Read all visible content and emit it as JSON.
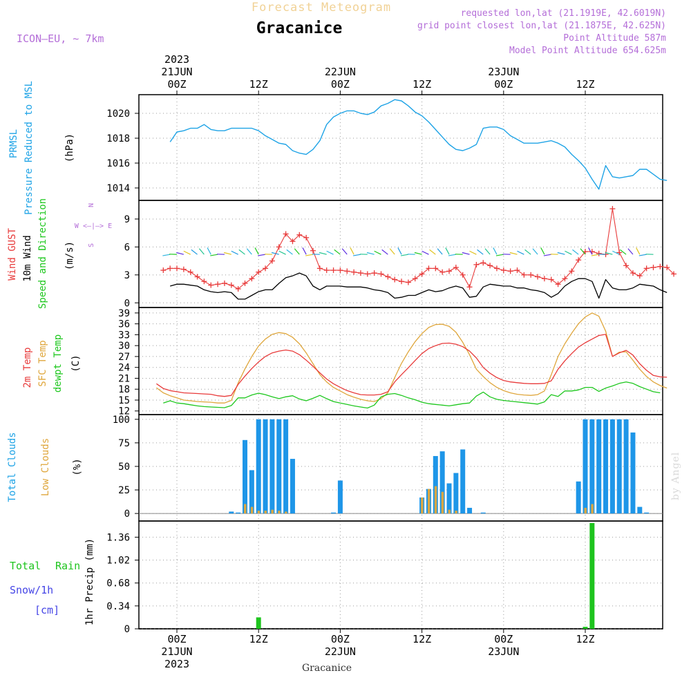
{
  "header": {
    "supertitle": "Forecast Meteogram",
    "location": "Gracanice",
    "model": "ICON—EU, ~ 7km",
    "requested": "requested lon,lat (21.1919E, 42.6019N)",
    "gridpoint": "grid point closest lon,lat (21.1875E, 42.625N)",
    "point_alt": "Point Altitude 587m",
    "model_alt": "Model Point Altitude 654.625m",
    "credit": "by Angel",
    "footer": "Gracanice"
  },
  "time_axis": {
    "top": [
      {
        "slot": 0,
        "lines": [
          "2023",
          "21JUN",
          "00Z"
        ]
      },
      {
        "slot": 12,
        "lines": [
          "12Z"
        ]
      },
      {
        "slot": 24,
        "lines": [
          "22JUN",
          "00Z"
        ]
      },
      {
        "slot": 36,
        "lines": [
          "12Z"
        ]
      },
      {
        "slot": 48,
        "lines": [
          "23JUN",
          "00Z"
        ]
      },
      {
        "slot": 60,
        "lines": [
          "12Z"
        ]
      }
    ],
    "bottom": [
      {
        "slot": 0,
        "lines": [
          "00Z",
          "21JUN",
          "2023"
        ]
      },
      {
        "slot": 12,
        "lines": [
          "12Z"
        ]
      },
      {
        "slot": 24,
        "lines": [
          "00Z",
          "22JUN"
        ]
      },
      {
        "slot": 36,
        "lines": [
          "12Z"
        ]
      },
      {
        "slot": 48,
        "lines": [
          "00Z",
          "23JUN"
        ]
      },
      {
        "slot": 60,
        "lines": [
          "12Z"
        ]
      }
    ]
  },
  "panel_labels": {
    "pressure": {
      "l1": "PRMSL",
      "l2": "Pressure Reduced to MSL",
      "unit": "(hPa)"
    },
    "wind": {
      "l1": "Wind GUST",
      "l2": "10m Wind",
      "l3": "Speed and Direction",
      "unit": "(m/s)",
      "compass": [
        "N",
        "W <—|—> E",
        "S"
      ]
    },
    "temp": {
      "l1": "2m Temp",
      "l2": "SFC Temp",
      "l3": "dewpt Temp",
      "unit": "(C)"
    },
    "clouds": {
      "l1": "Total Clouds",
      "l2": "Low Clouds",
      "unit": "(%)"
    },
    "precip": {
      "l1": "Total",
      "l1b": "Rain",
      "l2": "Snow/1h",
      "l3": "[cm]",
      "unit": "1hr Precip (mm)"
    }
  },
  "colors": {
    "pressure": "#1ea3e6",
    "gust": "#e83a3a",
    "wind": "#000000",
    "temp2m": "#e83a3a",
    "sfc": "#dfa63b",
    "dew": "#1dc71d",
    "total_clouds": "#1e96e8",
    "low_clouds": "#d8a744",
    "rain": "#1ec41e",
    "snow": "#4545e6",
    "model": "#b46ed8",
    "title_top": "#f1d296"
  },
  "chart_data": [
    {
      "type": "line",
      "name": "pressure",
      "ylim": [
        1013,
        1021.5
      ],
      "yticks": [
        1014,
        1016,
        1018,
        1020
      ],
      "x_start": -1,
      "x_step": 1,
      "series": [
        {
          "name": "PRMSL",
          "values": [
            1017.7,
            1018.5,
            1018.6,
            1018.8,
            1018.8,
            1019.1,
            1018.7,
            1018.6,
            1018.6,
            1018.8,
            1018.8,
            1018.8,
            1018.8,
            1018.6,
            1018.2,
            1017.9,
            1017.6,
            1017.5,
            1017.0,
            1016.8,
            1016.7,
            1017.1,
            1017.8,
            1019.1,
            1019.7,
            1020.0,
            1020.2,
            1020.2,
            1020.0,
            1019.9,
            1020.1,
            1020.6,
            1020.8,
            1021.1,
            1021.0,
            1020.6,
            1020.1,
            1019.8,
            1019.3,
            1018.7,
            1018.1,
            1017.5,
            1017.1,
            1017.0,
            1017.2,
            1017.5,
            1018.8,
            1018.9,
            1018.9,
            1018.7,
            1018.2,
            1017.9,
            1017.6,
            1017.6,
            1017.6,
            1017.7,
            1017.8,
            1017.6,
            1017.3,
            1016.7,
            1016.2,
            1015.6,
            1014.7,
            1013.9,
            1015.8,
            1014.9,
            1014.8,
            1014.9,
            1015.0,
            1015.5,
            1015.5,
            1015.1,
            1014.7,
            1014.6
          ]
        }
      ]
    },
    {
      "type": "line",
      "name": "wind",
      "ylim": [
        -0.5,
        11
      ],
      "yticks": [
        0,
        3,
        6,
        9
      ],
      "x_start": -1,
      "x_step": 1,
      "series": [
        {
          "name": "Wind GUST",
          "values": [
            3.5,
            3.7,
            3.7,
            3.6,
            3.3,
            2.8,
            2.3,
            1.9,
            2.0,
            2.1,
            1.9,
            1.5,
            2.1,
            2.6,
            3.3,
            3.7,
            4.5,
            6.0,
            7.4,
            6.6,
            7.3,
            7.0,
            5.6,
            3.7,
            3.5,
            3.5,
            3.5,
            3.4,
            3.3,
            3.2,
            3.1,
            3.2,
            3.1,
            2.8,
            2.5,
            2.3,
            2.2,
            2.6,
            3.1,
            3.7,
            3.7,
            3.3,
            3.4,
            3.8,
            3.0,
            1.7,
            4.1,
            4.3,
            4.0,
            3.7,
            3.5,
            3.4,
            3.5,
            3.0,
            3.0,
            2.8,
            2.6,
            2.5,
            2.0,
            2.6,
            3.4,
            4.6,
            5.5,
            5.5,
            5.3,
            5.2,
            10.1,
            5.4,
            4.0,
            3.2,
            2.9,
            3.7,
            3.8,
            3.9,
            3.8,
            3.1
          ],
          "x_start": -2
        },
        {
          "name": "10m Wind",
          "values": [
            1.8,
            2.0,
            2.0,
            1.9,
            1.8,
            1.4,
            1.2,
            1.1,
            1.2,
            1.1,
            0.4,
            0.4,
            0.8,
            1.2,
            1.4,
            1.4,
            2.1,
            2.7,
            2.9,
            3.2,
            2.9,
            1.8,
            1.4,
            1.8,
            1.8,
            1.8,
            1.7,
            1.7,
            1.7,
            1.6,
            1.4,
            1.3,
            1.1,
            0.5,
            0.6,
            0.8,
            0.8,
            1.1,
            1.4,
            1.2,
            1.3,
            1.6,
            1.8,
            1.6,
            0.6,
            0.7,
            1.7,
            2.0,
            1.9,
            1.8,
            1.8,
            1.6,
            1.6,
            1.4,
            1.3,
            1.1,
            0.6,
            1.0,
            1.8,
            2.3,
            2.6,
            2.6,
            2.3,
            0.5,
            2.5,
            1.6,
            1.4,
            1.4,
            1.6,
            2.0,
            1.9,
            1.8,
            1.4,
            1.1
          ]
        }
      ],
      "direction_arrows_x": [
        -1,
        0,
        1,
        2,
        3,
        4,
        5,
        6,
        7,
        8,
        9,
        10,
        11,
        12,
        13,
        14,
        15,
        16,
        17,
        18,
        19,
        20,
        21,
        22,
        23,
        24,
        25,
        26,
        27,
        28,
        29,
        30,
        31,
        32,
        33,
        34,
        35,
        36,
        37,
        38,
        39,
        40,
        41,
        42,
        43,
        44,
        45,
        46,
        47,
        48,
        49,
        50,
        51,
        52,
        53,
        54,
        55,
        56,
        57,
        58,
        59,
        60,
        61,
        62,
        63,
        64,
        65,
        66,
        67,
        68,
        69,
        70
      ]
    },
    {
      "type": "line",
      "name": "temperature",
      "ylim": [
        11,
        40.5
      ],
      "yticks": [
        12,
        15,
        18,
        21,
        24,
        27,
        30,
        33,
        36,
        39
      ],
      "x_start": -2,
      "x_step": 1,
      "series": [
        {
          "name": "2m Temp",
          "values": [
            19.5,
            18.2,
            17.6,
            17.3,
            17.0,
            16.9,
            16.8,
            16.7,
            16.6,
            16.2,
            16.0,
            16.3,
            19.3,
            21.6,
            23.7,
            25.5,
            27.0,
            28.0,
            28.5,
            28.8,
            28.5,
            27.5,
            26.0,
            24.3,
            22.5,
            20.8,
            19.5,
            18.5,
            17.6,
            17.0,
            16.5,
            16.4,
            16.4,
            16.6,
            17.3,
            20.0,
            22.0,
            23.9,
            25.9,
            27.8,
            29.2,
            30.0,
            30.6,
            30.7,
            30.4,
            29.7,
            28.5,
            26.6,
            24.0,
            22.4,
            21.2,
            20.4,
            20.0,
            19.8,
            19.6,
            19.5,
            19.5,
            19.6,
            20.3,
            23.5,
            25.8,
            27.8,
            29.6,
            30.8,
            31.8,
            32.8,
            33.1,
            27.0,
            28.0,
            28.7,
            27.4,
            25.0,
            23.2,
            21.8,
            21.4,
            21.3
          ],
          "x_start": -3
        },
        {
          "name": "SFC Temp",
          "values": [
            18.4,
            17.0,
            16.2,
            15.6,
            15.0,
            14.8,
            14.6,
            14.5,
            14.4,
            14.2,
            14.2,
            14.9,
            19.7,
            23.6,
            27.0,
            29.9,
            31.8,
            33.1,
            33.6,
            33.3,
            32.3,
            30.5,
            28.0,
            25.0,
            22.0,
            20.0,
            18.5,
            17.5,
            16.5,
            15.8,
            15.2,
            14.8,
            14.6,
            15.4,
            17.0,
            21.2,
            25.1,
            28.3,
            31.1,
            33.3,
            35.0,
            35.8,
            35.9,
            35.3,
            33.7,
            30.9,
            27.5,
            23.5,
            21.5,
            19.8,
            18.5,
            17.6,
            17.0,
            16.6,
            16.4,
            16.3,
            16.5,
            17.5,
            22.0,
            27.0,
            30.5,
            33.4,
            36.0,
            37.9,
            39.0,
            38.1,
            34.0,
            27.0,
            28.2,
            28.3,
            26.0,
            23.5,
            21.5,
            20.0,
            19.0,
            18.3
          ],
          "x_start": -3
        },
        {
          "name": "dewpt Temp",
          "values": [
            14.2,
            14.8,
            14.2,
            14.0,
            13.7,
            13.4,
            13.2,
            13.1,
            13.0,
            12.9,
            13.5,
            15.6,
            15.6,
            16.4,
            16.9,
            16.5,
            15.9,
            15.4,
            15.9,
            16.2,
            15.3,
            14.8,
            15.5,
            16.3,
            15.4,
            14.6,
            14.2,
            13.8,
            13.4,
            13.1,
            12.8,
            13.6,
            15.9,
            16.6,
            16.8,
            16.3,
            15.6,
            15.1,
            14.4,
            14.0,
            13.8,
            13.6,
            13.4,
            13.7,
            14.0,
            14.2,
            16.1,
            17.2,
            15.9,
            15.2,
            14.9,
            14.7,
            14.5,
            14.3,
            14.1,
            13.9,
            14.5,
            16.5,
            16.0,
            17.5,
            17.5,
            17.8,
            18.5,
            18.5,
            17.4,
            18.3,
            18.9,
            19.6,
            20.0,
            19.6,
            18.7,
            18.0,
            17.3,
            17.0
          ],
          "x_start": -2
        }
      ]
    },
    {
      "type": "bar",
      "name": "clouds",
      "ylim": [
        -8,
        105
      ],
      "yticks": [
        0,
        25,
        50,
        75,
        100
      ],
      "bars": [
        {
          "x": 8,
          "total": 2,
          "low": 0
        },
        {
          "x": 9,
          "total": 1,
          "low": 0
        },
        {
          "x": 10,
          "total": 78,
          "low": 10
        },
        {
          "x": 11,
          "total": 46,
          "low": 7
        },
        {
          "x": 12,
          "total": 100,
          "low": 3
        },
        {
          "x": 13,
          "total": 100,
          "low": 3
        },
        {
          "x": 14,
          "total": 100,
          "low": 4
        },
        {
          "x": 15,
          "total": 100,
          "low": 3
        },
        {
          "x": 16,
          "total": 100,
          "low": 2
        },
        {
          "x": 17,
          "total": 58,
          "low": 0
        },
        {
          "x": 23,
          "total": 1,
          "low": 0
        },
        {
          "x": 24,
          "total": 35,
          "low": 0
        },
        {
          "x": 36,
          "total": 17,
          "low": 17
        },
        {
          "x": 37,
          "total": 26,
          "low": 26
        },
        {
          "x": 38,
          "total": 61,
          "low": 29
        },
        {
          "x": 39,
          "total": 66,
          "low": 23
        },
        {
          "x": 40,
          "total": 32,
          "low": 4
        },
        {
          "x": 41,
          "total": 43,
          "low": 3
        },
        {
          "x": 42,
          "total": 68,
          "low": 0
        },
        {
          "x": 43,
          "total": 6,
          "low": 0
        },
        {
          "x": 45,
          "total": 1,
          "low": 0
        },
        {
          "x": 59,
          "total": 34,
          "low": 0
        },
        {
          "x": 60,
          "total": 100,
          "low": 6
        },
        {
          "x": 61,
          "total": 100,
          "low": 10
        },
        {
          "x": 62,
          "total": 100,
          "low": 0
        },
        {
          "x": 63,
          "total": 100,
          "low": 0
        },
        {
          "x": 64,
          "total": 100,
          "low": 0
        },
        {
          "x": 65,
          "total": 100,
          "low": 0
        },
        {
          "x": 66,
          "total": 100,
          "low": 0
        },
        {
          "x": 67,
          "total": 86,
          "low": 0
        },
        {
          "x": 68,
          "total": 7,
          "low": 0
        },
        {
          "x": 69,
          "total": 1,
          "low": 0
        }
      ]
    },
    {
      "type": "bar",
      "name": "precip",
      "ylim": [
        0,
        1.6
      ],
      "yticks": [
        0,
        0.34,
        0.68,
        1.02,
        1.36
      ],
      "ytick_labels": [
        "0",
        "0.34",
        "0.68",
        "1.02",
        "1.36"
      ],
      "bars": [
        {
          "x": 12,
          "rain": 0.17
        },
        {
          "x": 60,
          "rain": 0.03
        },
        {
          "x": 61,
          "rain": 1.57
        }
      ]
    }
  ]
}
